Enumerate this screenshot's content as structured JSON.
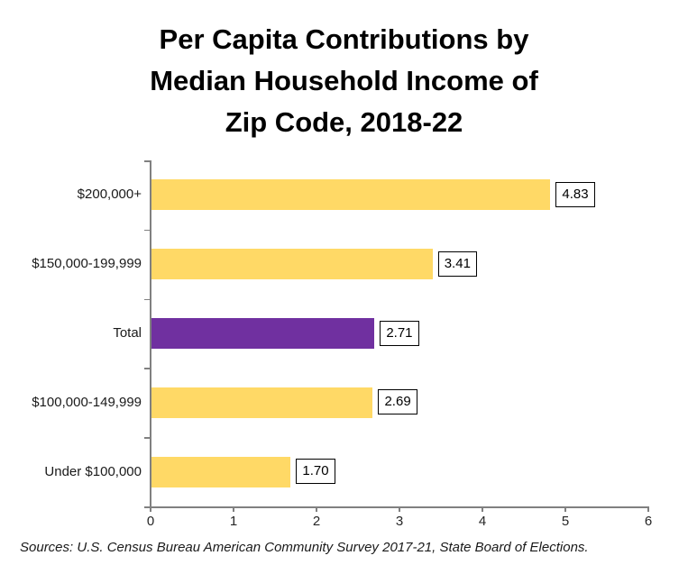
{
  "title": "Per Capita Contributions by\nMedian Household Income of\nZip Code, 2018-22",
  "source_note": "Sources: U.S. Census Bureau American Community Survey 2017-21, State Board of Elections.",
  "chart_data": {
    "type": "bar",
    "orientation": "horizontal",
    "title": "Per Capita Contributions by Median Household Income of Zip Code, 2018-22",
    "categories": [
      "$200,000+",
      "$150,000-199,999",
      "Total",
      "$100,000-149,999",
      "Under $100,000"
    ],
    "values": [
      4.83,
      3.41,
      2.71,
      2.69,
      1.7
    ],
    "data_labels": [
      "4.83",
      "3.41",
      "2.71",
      "2.69",
      "1.70"
    ],
    "x_ticks": [
      "0",
      "1",
      "2",
      "3",
      "4",
      "5",
      "6"
    ],
    "xlim": [
      0,
      6
    ],
    "xlabel": "",
    "ylabel": "",
    "grid": false,
    "legend": false,
    "data_label_style": "boxed-outside-end",
    "highlight_category": "Total",
    "colors": {
      "bar": "#FFD966",
      "highlight_bar": "#7030A0",
      "axis": "#808080",
      "text": "#1a1a1a",
      "data_label_border": "#000000",
      "background": "#ffffff"
    }
  }
}
